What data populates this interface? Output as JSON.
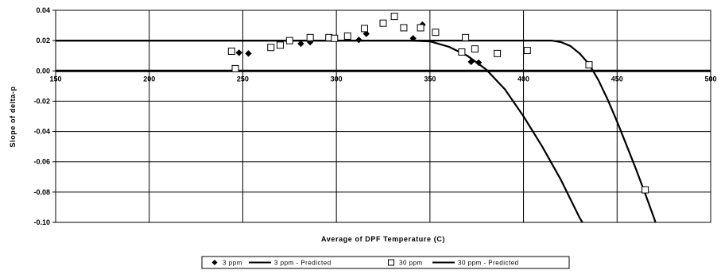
{
  "chart_data": {
    "type": "scatter",
    "title": "",
    "xlabel": "Average of DPF Temperature (C)",
    "ylabel": "Slope of delta-p",
    "xlim": [
      150,
      500
    ],
    "ylim": [
      -0.1,
      0.04
    ],
    "x_ticks": [
      "150",
      "200",
      "250",
      "300",
      "350",
      "400",
      "450",
      "500"
    ],
    "y_ticks": [
      "0.04",
      "0.02",
      "0.00",
      "-0.02",
      "-0.04",
      "-0.06",
      "-0.08",
      "-0.10"
    ],
    "grid": true,
    "legend_position": "bottom",
    "series": [
      {
        "name": "3 ppm",
        "kind": "markers",
        "marker": "diamond",
        "color": "#000000",
        "points": [
          [
            248,
            0.012
          ],
          [
            253,
            0.0115
          ],
          [
            281,
            0.018
          ],
          [
            286,
            0.019
          ],
          [
            312,
            0.0205
          ],
          [
            316,
            0.0245
          ],
          [
            341,
            0.0215
          ],
          [
            346,
            0.0305
          ],
          [
            372,
            0.006
          ],
          [
            376,
            0.0055
          ]
        ]
      },
      {
        "name": "3 ppm - Predicted",
        "kind": "line",
        "color": "#000000",
        "points": [
          [
            150,
            0.02
          ],
          [
            340,
            0.02
          ],
          [
            350,
            0.0195
          ],
          [
            360,
            0.016
          ],
          [
            370,
            0.01
          ],
          [
            380,
            0.001
          ],
          [
            390,
            -0.012
          ],
          [
            400,
            -0.03
          ],
          [
            410,
            -0.05
          ],
          [
            420,
            -0.072
          ],
          [
            430,
            -0.097
          ],
          [
            431.5,
            -0.1
          ]
        ]
      },
      {
        "name": "30 ppm",
        "kind": "markers",
        "marker": "square",
        "color": "#000000",
        "points": [
          [
            244,
            0.013
          ],
          [
            246,
            0.0015
          ],
          [
            265,
            0.0155
          ],
          [
            270,
            0.017
          ],
          [
            275,
            0.02
          ],
          [
            286,
            0.022
          ],
          [
            296,
            0.022
          ],
          [
            299,
            0.0215
          ],
          [
            306,
            0.023
          ],
          [
            315,
            0.028
          ],
          [
            325,
            0.0315
          ],
          [
            331,
            0.036
          ],
          [
            336,
            0.0285
          ],
          [
            345,
            0.0285
          ],
          [
            353,
            0.0255
          ],
          [
            367,
            0.0125
          ],
          [
            369,
            0.022
          ],
          [
            374,
            0.0145
          ],
          [
            386,
            0.0115
          ],
          [
            402,
            0.0135
          ],
          [
            435,
            0.004
          ],
          [
            465,
            -0.0785
          ]
        ]
      },
      {
        "name": "30 ppm - Predicted",
        "kind": "line",
        "color": "#000000",
        "points": [
          [
            150,
            0.02
          ],
          [
            415,
            0.02
          ],
          [
            420,
            0.019
          ],
          [
            425,
            0.0165
          ],
          [
            430,
            0.0115
          ],
          [
            435,
            0.0045
          ],
          [
            440,
            -0.006
          ],
          [
            445,
            -0.019
          ],
          [
            450,
            -0.0335
          ],
          [
            455,
            -0.049
          ],
          [
            460,
            -0.0645
          ],
          [
            465,
            -0.081
          ],
          [
            470,
            -0.098
          ],
          [
            470.5,
            -0.1
          ]
        ]
      }
    ]
  }
}
